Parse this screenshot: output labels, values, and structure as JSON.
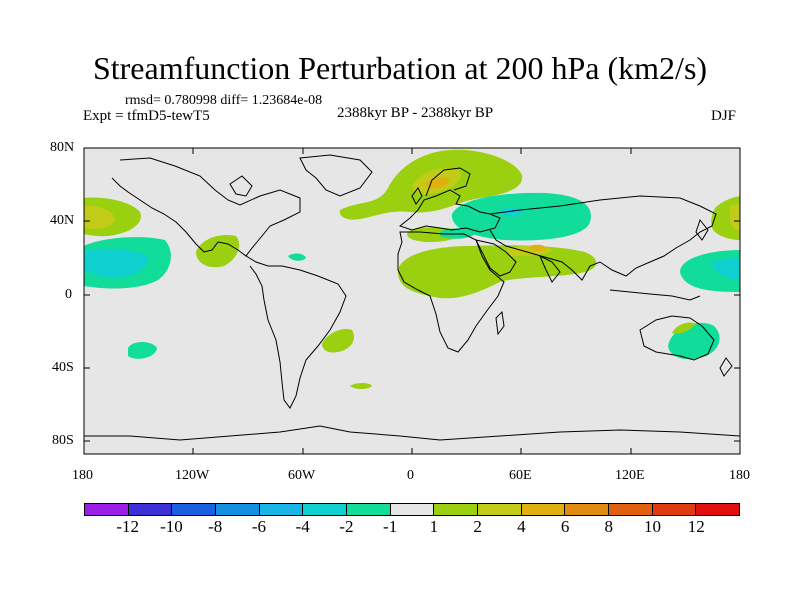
{
  "title": "Streamfunction Perturbation at 200 hPa (km2/s)",
  "stats": "rmsd= 0.780998 diff= 1.23684e-08",
  "experiment": "Expt = tfmD5-tewT5",
  "period": "2388kyr BP - 2388kyr BP",
  "season": "DJF",
  "axes": {
    "lat_ticks": [
      "80N",
      "40N",
      "0",
      "40S",
      "80S"
    ],
    "lon_ticks": [
      "180",
      "120W",
      "60W",
      "0",
      "60E",
      "120E",
      "180"
    ]
  },
  "colorbar": {
    "colors": [
      "#9a1ee6",
      "#3c30d6",
      "#1a5fe0",
      "#1490e0",
      "#18b6e6",
      "#10cfcf",
      "#12dc9a",
      "#e6e6e6",
      "#9ad010",
      "#c2cc18",
      "#e0b010",
      "#e08a10",
      "#e06010",
      "#e03a10",
      "#e01010"
    ],
    "labels": [
      "-12",
      "-10",
      "-8",
      "-6",
      "-4",
      "-2",
      "-1",
      "1",
      "2",
      "4",
      "6",
      "8",
      "10",
      "12"
    ]
  },
  "map_colors": {
    "background": "#e6e6e6",
    "coast": "#000000"
  }
}
